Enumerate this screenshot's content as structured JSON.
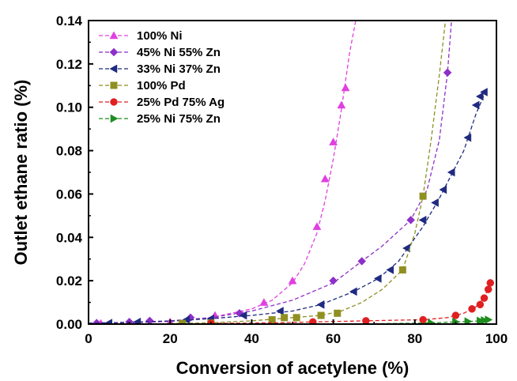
{
  "chart_data": {
    "type": "scatter",
    "title": "",
    "xlabel": "Conversion of acetylene (%)",
    "ylabel": "Outlet ethane ratio (%)",
    "xlim": [
      0,
      100
    ],
    "ylim": [
      0,
      0.14
    ],
    "xticks": [
      0,
      20,
      40,
      60,
      80,
      100
    ],
    "yticks": [
      0.0,
      0.02,
      0.04,
      0.06,
      0.08,
      0.1,
      0.12,
      0.14
    ],
    "ytick_labels": [
      "0.00",
      "0.02",
      "0.04",
      "0.06",
      "0.08",
      "0.10",
      "0.12",
      "0.14"
    ],
    "grid": false,
    "legend_position": "top-left",
    "fit_lines": "dashed",
    "series": [
      {
        "name": "100% Ni",
        "color": "#e040e0",
        "marker": "triangle-up",
        "points": [
          [
            3,
            0.0003
          ],
          [
            10,
            0.0005
          ],
          [
            20,
            0.001
          ],
          [
            31,
            0.004
          ],
          [
            43,
            0.01
          ],
          [
            50,
            0.02
          ],
          [
            56,
            0.045
          ],
          [
            58,
            0.067
          ],
          [
            60,
            0.084
          ],
          [
            62,
            0.101
          ],
          [
            63,
            0.109
          ]
        ],
        "curve": [
          [
            0,
            0.0003
          ],
          [
            10,
            0.0006
          ],
          [
            20,
            0.0012
          ],
          [
            30,
            0.003
          ],
          [
            40,
            0.007
          ],
          [
            45,
            0.011
          ],
          [
            50,
            0.019
          ],
          [
            53,
            0.028
          ],
          [
            56,
            0.042
          ],
          [
            58,
            0.057
          ],
          [
            60,
            0.076
          ],
          [
            62,
            0.099
          ],
          [
            64,
            0.125
          ],
          [
            65.5,
            0.14
          ]
        ]
      },
      {
        "name": "45% Ni 55% Zn",
        "color": "#8e2fc8",
        "marker": "diamond",
        "points": [
          [
            2,
            0.0005
          ],
          [
            10,
            0.001
          ],
          [
            15,
            0.0015
          ],
          [
            25,
            0.003
          ],
          [
            37,
            0.005
          ],
          [
            60,
            0.02
          ],
          [
            67,
            0.029
          ],
          [
            79,
            0.048
          ],
          [
            88,
            0.116
          ]
        ],
        "curve": [
          [
            0,
            0.0004
          ],
          [
            10,
            0.0008
          ],
          [
            20,
            0.0015
          ],
          [
            30,
            0.003
          ],
          [
            40,
            0.006
          ],
          [
            50,
            0.011
          ],
          [
            60,
            0.019
          ],
          [
            67,
            0.029
          ],
          [
            72,
            0.036
          ],
          [
            79,
            0.048
          ],
          [
            83,
            0.062
          ],
          [
            86,
            0.085
          ],
          [
            88,
            0.116
          ],
          [
            89,
            0.14
          ]
        ]
      },
      {
        "name": "33% Ni 37% Zn",
        "color": "#1f2a80",
        "marker": "triangle-left",
        "points": [
          [
            5,
            0.0005
          ],
          [
            12,
            0.001
          ],
          [
            24,
            0.002
          ],
          [
            30,
            0.0025
          ],
          [
            38,
            0.004
          ],
          [
            47,
            0.006
          ],
          [
            57,
            0.009
          ],
          [
            65,
            0.015
          ],
          [
            71,
            0.021
          ],
          [
            74,
            0.025
          ],
          [
            78,
            0.035
          ],
          [
            82,
            0.048
          ],
          [
            85,
            0.056
          ],
          [
            87,
            0.062
          ],
          [
            89,
            0.07
          ],
          [
            93,
            0.086
          ],
          [
            95,
            0.101
          ],
          [
            96,
            0.105
          ],
          [
            97,
            0.107
          ]
        ],
        "curve": [
          [
            0,
            0.0004
          ],
          [
            10,
            0.0008
          ],
          [
            20,
            0.0014
          ],
          [
            30,
            0.0025
          ],
          [
            40,
            0.004
          ],
          [
            50,
            0.006
          ],
          [
            57,
            0.009
          ],
          [
            65,
            0.015
          ],
          [
            71,
            0.021
          ],
          [
            76,
            0.029
          ],
          [
            82,
            0.045
          ],
          [
            86,
            0.058
          ],
          [
            89,
            0.069
          ],
          [
            92,
            0.08
          ],
          [
            95,
            0.097
          ],
          [
            97.5,
            0.108
          ]
        ]
      },
      {
        "name": "100% Pd",
        "color": "#8f8f22",
        "marker": "square",
        "points": [
          [
            23,
            0.0003
          ],
          [
            30,
            0.0005
          ],
          [
            45,
            0.002
          ],
          [
            48,
            0.003
          ],
          [
            51,
            0.003
          ],
          [
            57,
            0.004
          ],
          [
            61,
            0.005
          ],
          [
            77,
            0.025
          ],
          [
            82,
            0.059
          ]
        ],
        "curve": [
          [
            20,
            0.0003
          ],
          [
            30,
            0.0006
          ],
          [
            40,
            0.0015
          ],
          [
            50,
            0.003
          ],
          [
            57,
            0.004
          ],
          [
            62,
            0.006
          ],
          [
            67,
            0.01
          ],
          [
            72,
            0.016
          ],
          [
            77,
            0.025
          ],
          [
            80,
            0.042
          ],
          [
            82,
            0.059
          ],
          [
            84,
            0.085
          ],
          [
            86,
            0.115
          ],
          [
            87.5,
            0.14
          ]
        ]
      },
      {
        "name": "25% Pd 75% Ag",
        "color": "#e02020",
        "marker": "circle",
        "points": [
          [
            30,
            0.0003
          ],
          [
            55,
            0.001
          ],
          [
            68,
            0.0015
          ],
          [
            82,
            0.002
          ],
          [
            90,
            0.004
          ],
          [
            94,
            0.007
          ],
          [
            96,
            0.009
          ],
          [
            97,
            0.012
          ],
          [
            98,
            0.016
          ],
          [
            98.5,
            0.019
          ]
        ],
        "curve": [
          [
            30,
            0.0003
          ],
          [
            45,
            0.0006
          ],
          [
            55,
            0.001
          ],
          [
            65,
            0.0014
          ],
          [
            75,
            0.0018
          ],
          [
            82,
            0.002
          ],
          [
            88,
            0.003
          ],
          [
            92,
            0.005
          ],
          [
            95,
            0.008
          ],
          [
            97,
            0.012
          ],
          [
            98.5,
            0.019
          ]
        ]
      },
      {
        "name": "25% Ni  75% Zn",
        "color": "#1e8c1e",
        "marker": "triangle-right",
        "points": [
          [
            84,
            0.0005
          ],
          [
            90,
            0.001
          ],
          [
            93,
            0.0012
          ],
          [
            96,
            0.0015
          ],
          [
            97,
            0.0017
          ],
          [
            98,
            0.002
          ]
        ],
        "curve": [
          [
            70,
            0.0002
          ],
          [
            80,
            0.0004
          ],
          [
            86,
            0.0007
          ],
          [
            90,
            0.001
          ],
          [
            93,
            0.0012
          ],
          [
            96,
            0.0015
          ],
          [
            98,
            0.002
          ]
        ]
      }
    ]
  }
}
